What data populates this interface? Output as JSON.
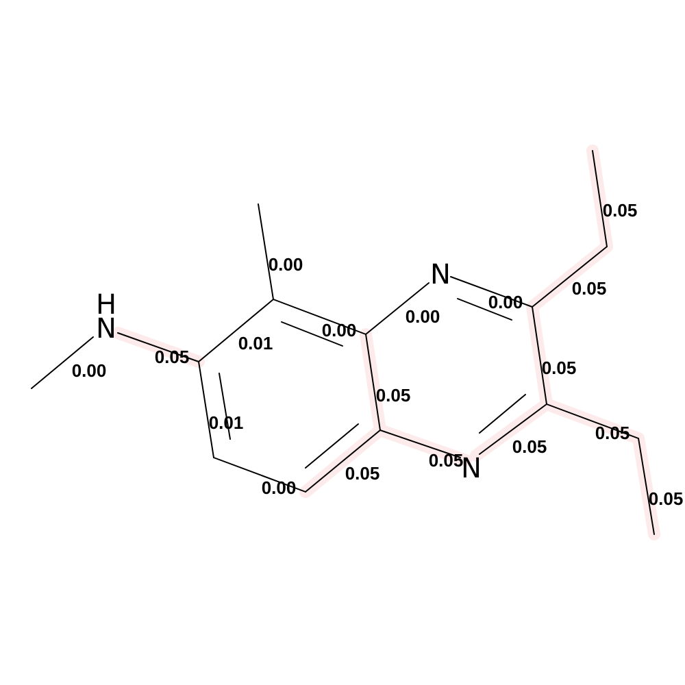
{
  "colors": {
    "background": "#ffffff",
    "bond": "#000000",
    "highlight": "#fdeaea"
  },
  "atoms": {
    "nh": {
      "h": "H",
      "n": "N"
    },
    "n_top": "N",
    "n_bottom": "N"
  },
  "bond_weights": {
    "methyl_nh": "0.00",
    "nh_c6": "0.05",
    "c6_c7": "0.01",
    "c7_methyl": "0.00",
    "c5_c6": "0.01",
    "c4_c5": "0.00",
    "c4a_c4": "0.05",
    "c8_c8a": "0.00",
    "c8a_n1": "0.00",
    "n1_c2": "0.00",
    "c2_ethyl": "0.05",
    "ethyl_top_end": "0.05",
    "c2_c3": "0.05",
    "c3_n4": "0.05",
    "n4_c4a": "0.05",
    "c4a_c8a": "0.05",
    "c3_ethyl": "0.05",
    "ethyl_bottom_end": "0.05"
  }
}
